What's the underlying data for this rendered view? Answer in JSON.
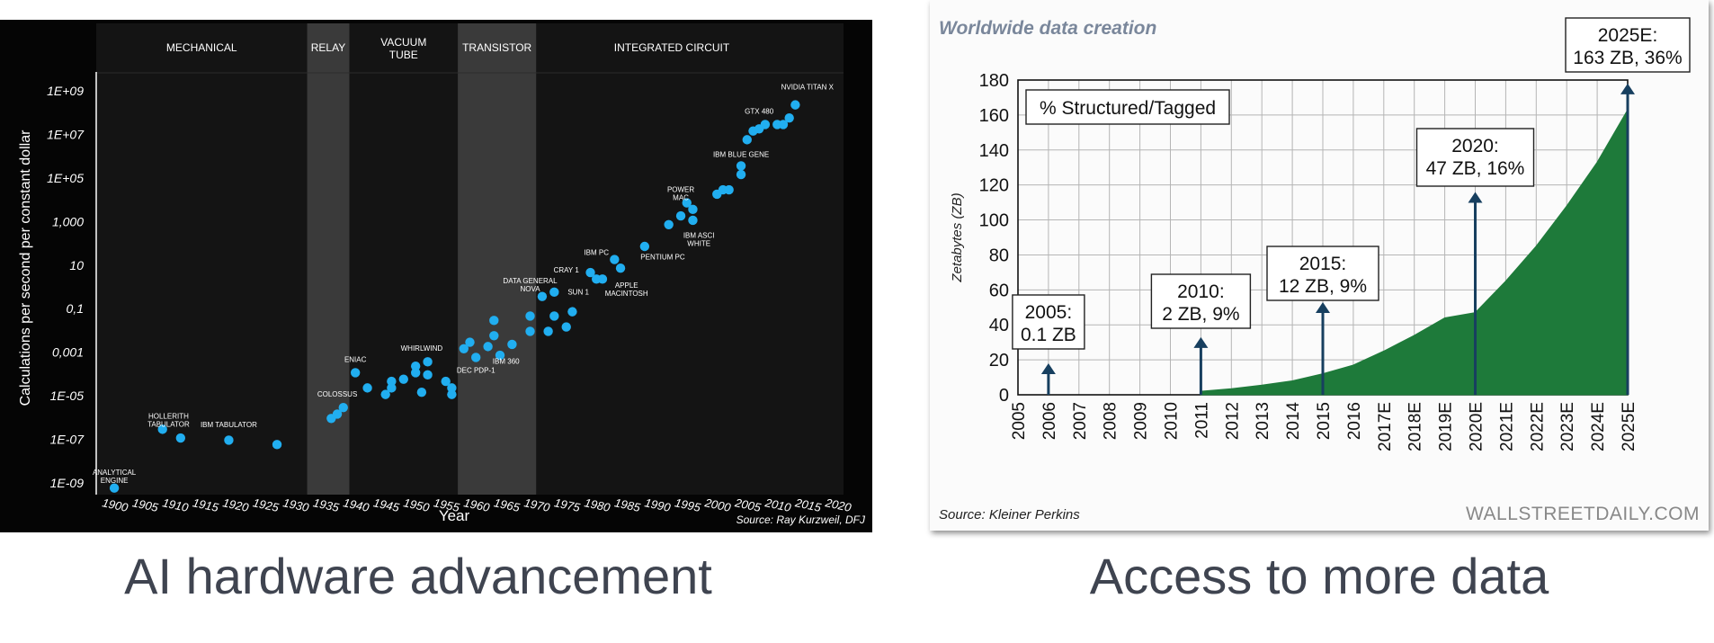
{
  "captions": {
    "left": "AI hardware advancement",
    "right": "Access to more data"
  },
  "chart_data": [
    {
      "type": "scatter",
      "title": "",
      "xlabel": "Year",
      "ylabel": "Calculations per second per constant dollar",
      "source": "Source: Ray Kurzweil, DFJ",
      "y_scale": "log",
      "xlim": [
        1897,
        2021
      ],
      "ylim_log10": [
        -9.5,
        9.5
      ],
      "x_ticks": [
        "1900",
        "1905",
        "1910",
        "1915",
        "1920",
        "1925",
        "1930",
        "1935",
        "1940",
        "1945",
        "1950",
        "1955",
        "1960",
        "1965",
        "1970",
        "1975",
        "1980",
        "1985",
        "1990",
        "1995",
        "2000",
        "2005",
        "2010",
        "2015",
        "2020"
      ],
      "y_ticks": [
        {
          "label": "1E+09",
          "log": 9
        },
        {
          "label": "1E+07",
          "log": 7
        },
        {
          "label": "1E+05",
          "log": 5
        },
        {
          "label": "1,000",
          "log": 3
        },
        {
          "label": "10",
          "log": 1
        },
        {
          "label": "0,1",
          "log": -1
        },
        {
          "label": "0,001",
          "log": -3
        },
        {
          "label": "1E-05",
          "log": -5
        },
        {
          "label": "1E-07",
          "log": -7
        },
        {
          "label": "1E-09",
          "log": -9
        }
      ],
      "eras": [
        {
          "label": "MECHANICAL",
          "start": 1897,
          "end": 1932,
          "shade": false
        },
        {
          "label": "RELAY",
          "start": 1932,
          "end": 1939,
          "shade": true
        },
        {
          "label": "VACUUM\nTUBE",
          "start": 1939,
          "end": 1957,
          "shade": false
        },
        {
          "label": "TRANSISTOR",
          "start": 1957,
          "end": 1970,
          "shade": true
        },
        {
          "label": "INTEGRATED CIRCUIT",
          "start": 1970,
          "end": 2015,
          "shade": false
        }
      ],
      "points": [
        {
          "x": 1900,
          "y": -9.2
        },
        {
          "x": 1908,
          "y": -6.5
        },
        {
          "x": 1911,
          "y": -6.9
        },
        {
          "x": 1919,
          "y": -7.0
        },
        {
          "x": 1927,
          "y": -7.2
        },
        {
          "x": 1936,
          "y": -6.0
        },
        {
          "x": 1937,
          "y": -5.8
        },
        {
          "x": 1938,
          "y": -5.5
        },
        {
          "x": 1940,
          "y": -3.9
        },
        {
          "x": 1942,
          "y": -4.6
        },
        {
          "x": 1945,
          "y": -4.9
        },
        {
          "x": 1946,
          "y": -4.3
        },
        {
          "x": 1946,
          "y": -4.6
        },
        {
          "x": 1948,
          "y": -4.2
        },
        {
          "x": 1950,
          "y": -3.6
        },
        {
          "x": 1950,
          "y": -3.9
        },
        {
          "x": 1951,
          "y": -4.8
        },
        {
          "x": 1952,
          "y": -3.4
        },
        {
          "x": 1952,
          "y": -4.0
        },
        {
          "x": 1955,
          "y": -4.3
        },
        {
          "x": 1956,
          "y": -4.6
        },
        {
          "x": 1956,
          "y": -4.9
        },
        {
          "x": 1958,
          "y": -2.8
        },
        {
          "x": 1959,
          "y": -2.5
        },
        {
          "x": 1960,
          "y": -3.2
        },
        {
          "x": 1962,
          "y": -2.7
        },
        {
          "x": 1963,
          "y": -2.2
        },
        {
          "x": 1963,
          "y": -1.5
        },
        {
          "x": 1964,
          "y": -3.1
        },
        {
          "x": 1966,
          "y": -2.6
        },
        {
          "x": 1969,
          "y": -1.3
        },
        {
          "x": 1969,
          "y": -2.0
        },
        {
          "x": 1971,
          "y": -0.4
        },
        {
          "x": 1972,
          "y": -2.0
        },
        {
          "x": 1973,
          "y": -1.3
        },
        {
          "x": 1973,
          "y": -0.2
        },
        {
          "x": 1975,
          "y": -1.8
        },
        {
          "x": 1976,
          "y": -1.1
        },
        {
          "x": 1979,
          "y": 0.7
        },
        {
          "x": 1980,
          "y": 0.4
        },
        {
          "x": 1981,
          "y": 0.4
        },
        {
          "x": 1983,
          "y": 1.3
        },
        {
          "x": 1984,
          "y": 0.9
        },
        {
          "x": 1988,
          "y": 1.9
        },
        {
          "x": 1992,
          "y": 2.9
        },
        {
          "x": 1994,
          "y": 3.3
        },
        {
          "x": 1995,
          "y": 3.9
        },
        {
          "x": 1996,
          "y": 3.1
        },
        {
          "x": 1996,
          "y": 3.6
        },
        {
          "x": 2000,
          "y": 4.3
        },
        {
          "x": 2001,
          "y": 4.5
        },
        {
          "x": 2002,
          "y": 4.5
        },
        {
          "x": 2004,
          "y": 5.2
        },
        {
          "x": 2004,
          "y": 5.6
        },
        {
          "x": 2005,
          "y": 6.8
        },
        {
          "x": 2006,
          "y": 7.2
        },
        {
          "x": 2007,
          "y": 7.3
        },
        {
          "x": 2008,
          "y": 7.5
        },
        {
          "x": 2010,
          "y": 7.5
        },
        {
          "x": 2011,
          "y": 7.5
        },
        {
          "x": 2012,
          "y": 7.8
        },
        {
          "x": 2013,
          "y": 8.4
        }
      ],
      "annotations": [
        {
          "text": "ANALYTICAL\nENGINE",
          "x": 1900,
          "y": -8.6
        },
        {
          "text": "HOLLERITH\nTABULATOR",
          "x": 1909,
          "y": -6.0
        },
        {
          "text": "IBM TABULATOR",
          "x": 1919,
          "y": -6.4
        },
        {
          "text": "COLOSSUS",
          "x": 1937,
          "y": -5.0
        },
        {
          "text": "ENIAC",
          "x": 1940,
          "y": -3.4
        },
        {
          "text": "WHIRLWIND",
          "x": 1951,
          "y": -2.9
        },
        {
          "text": "DEC PDP-1",
          "x": 1960,
          "y": -3.9
        },
        {
          "text": "IBM 360",
          "x": 1965,
          "y": -3.5
        },
        {
          "text": "DATA GENERAL\nNOVA",
          "x": 1969,
          "y": 0.2
        },
        {
          "text": "CRAY 1",
          "x": 1975,
          "y": 0.7
        },
        {
          "text": "SUN 1",
          "x": 1977,
          "y": -0.3
        },
        {
          "text": "IBM PC",
          "x": 1980,
          "y": 1.5
        },
        {
          "text": "APPLE\nMACINTOSH",
          "x": 1985,
          "y": 0.0
        },
        {
          "text": "PENTIUM PC",
          "x": 1991,
          "y": 1.3
        },
        {
          "text": "POWER\nMAC",
          "x": 1994,
          "y": 4.4
        },
        {
          "text": "IBM ASCI\nWHITE",
          "x": 1997,
          "y": 2.3
        },
        {
          "text": "IBM BLUE GENE",
          "x": 2004,
          "y": 6.0
        },
        {
          "text": "GTX 480",
          "x": 2007,
          "y": 8.0
        },
        {
          "text": "NVIDIA TITAN X",
          "x": 2015,
          "y": 9.1
        }
      ]
    },
    {
      "type": "area",
      "title": "Worldwide data creation",
      "xlabel": "",
      "ylabel": "Zetabytes (ZB)",
      "ylim": [
        0,
        180
      ],
      "y_ticks": [
        0,
        20,
        40,
        60,
        80,
        100,
        120,
        140,
        160,
        180
      ],
      "categories": [
        "2005",
        "2006",
        "2007",
        "2008",
        "2009",
        "2010",
        "2011",
        "2012",
        "2013",
        "2014",
        "2015",
        "2016",
        "2017E",
        "2018E",
        "2019E",
        "2020E",
        "2021E",
        "2022E",
        "2023E",
        "2024E",
        "2025E"
      ],
      "series": [
        {
          "values": [
            null,
            0.1,
            null,
            null,
            null,
            null,
            2,
            3.5,
            5.5,
            8,
            12,
            17,
            25,
            34,
            44,
            47,
            65,
            85,
            108,
            133,
            163
          ]
        }
      ],
      "legend": {
        "label": "% Structured/Tagged",
        "placement": "top-left"
      },
      "callouts": [
        {
          "category": "2006",
          "text": "2005:\n0.1 ZB",
          "arrow_top": 18
        },
        {
          "category": "2011",
          "text": "2010:\n2 ZB, 9%",
          "arrow_top": 33
        },
        {
          "category": "2015",
          "text": "2015:\n12 ZB, 9%",
          "arrow_top": 53
        },
        {
          "category": "2020E",
          "text": "2020:\n47 ZB, 16%",
          "arrow_top": 116
        },
        {
          "category": "2025E",
          "text": "2025E:\n163 ZB, 36%",
          "arrow_top": 178
        }
      ],
      "source": "Source: Kleiner Perkins",
      "watermark": "WALLSTREETDAILY.COM",
      "colors": {
        "area": "#1e7a3a",
        "arrow": "#173f5f"
      }
    }
  ]
}
